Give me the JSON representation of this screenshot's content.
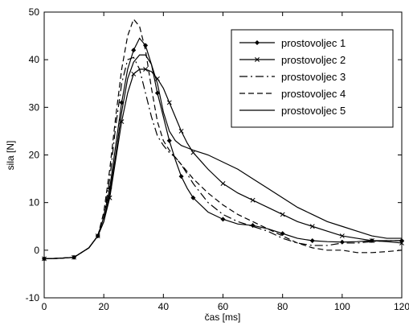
{
  "chart_data": {
    "type": "line",
    "title": "",
    "xlabel": "čas [ms]",
    "ylabel": "sila [N]",
    "xlim": [
      0,
      120
    ],
    "ylim": [
      -10,
      50
    ],
    "xticks": [
      0,
      20,
      40,
      60,
      80,
      100,
      120
    ],
    "yticks": [
      -10,
      0,
      10,
      20,
      30,
      40,
      50
    ],
    "grid": false,
    "legend_position": "top-right",
    "series": [
      {
        "name": "prostovoljec 1",
        "style": "solid-diamond",
        "x": [
          0,
          5,
          10,
          15,
          18,
          20,
          22,
          24,
          26,
          28,
          30,
          32,
          34,
          36,
          38,
          40,
          42,
          44,
          46,
          48,
          50,
          55,
          60,
          65,
          70,
          75,
          80,
          85,
          90,
          95,
          100,
          105,
          110,
          115,
          120
        ],
        "y": [
          -1.8,
          -1.7,
          -1.5,
          0.5,
          3,
          7,
          13,
          22,
          31,
          38,
          42,
          44.5,
          43,
          39,
          33,
          28,
          23,
          19,
          15.5,
          13,
          11,
          8,
          6.5,
          5.5,
          5.2,
          4.5,
          3.5,
          2.5,
          2,
          1.8,
          1.7,
          1.8,
          2,
          2,
          2
        ]
      },
      {
        "name": "prostovoljec 2",
        "style": "solid-x",
        "x": [
          0,
          5,
          10,
          15,
          18,
          20,
          22,
          24,
          26,
          28,
          30,
          32,
          34,
          36,
          38,
          40,
          42,
          44,
          46,
          48,
          50,
          55,
          60,
          65,
          70,
          75,
          80,
          85,
          90,
          95,
          100,
          105,
          110,
          115,
          120
        ],
        "y": [
          -1.8,
          -1.7,
          -1.5,
          0.5,
          3,
          6,
          11,
          19,
          27,
          33,
          37,
          38,
          38,
          37.5,
          36,
          34,
          31,
          28,
          25,
          22.5,
          20.5,
          17,
          14,
          12,
          10.5,
          9,
          7.5,
          6,
          5,
          4,
          3,
          2.5,
          2,
          1.8,
          1.5
        ]
      },
      {
        "name": "prostovoljec 3",
        "style": "dash-dot",
        "x": [
          0,
          5,
          10,
          15,
          18,
          20,
          22,
          24,
          26,
          28,
          30,
          32,
          34,
          36,
          38,
          40,
          42,
          44,
          46,
          48,
          50,
          55,
          60,
          65,
          70,
          75,
          80,
          85,
          90,
          95,
          100,
          105,
          110,
          115,
          120
        ],
        "y": [
          -1.8,
          -1.7,
          -1.5,
          0.5,
          3,
          7,
          15,
          26,
          35,
          40,
          40.5,
          38,
          33,
          28,
          24,
          22,
          20.5,
          19.5,
          18,
          16,
          14,
          10,
          7.5,
          6,
          5,
          4,
          2.5,
          1.5,
          1,
          1,
          1.5,
          1.5,
          1.8,
          2,
          2
        ]
      },
      {
        "name": "prostovoljec 4",
        "style": "dashed",
        "x": [
          0,
          5,
          10,
          15,
          18,
          20,
          22,
          24,
          26,
          28,
          30,
          32,
          34,
          36,
          38,
          40,
          42,
          44,
          46,
          48,
          50,
          55,
          60,
          65,
          70,
          75,
          80,
          85,
          90,
          95,
          100,
          105,
          110,
          115,
          120
        ],
        "y": [
          -1.8,
          -1.7,
          -1.5,
          0.5,
          3,
          8,
          17,
          28,
          38,
          45,
          48.5,
          47,
          42,
          34,
          27,
          23,
          21,
          19.5,
          18,
          16.5,
          15,
          12,
          9.5,
          7.5,
          6,
          4.5,
          3,
          1.5,
          0.5,
          0,
          0,
          -0.5,
          -0.5,
          -0.3,
          0
        ]
      },
      {
        "name": "prostovoljec 5",
        "style": "solid",
        "x": [
          0,
          5,
          10,
          15,
          18,
          20,
          22,
          24,
          26,
          28,
          30,
          32,
          34,
          36,
          38,
          40,
          42,
          44,
          46,
          48,
          50,
          55,
          60,
          65,
          70,
          75,
          80,
          85,
          90,
          95,
          100,
          105,
          110,
          115,
          120
        ],
        "y": [
          -1.8,
          -1.7,
          -1.5,
          0.5,
          3,
          6,
          12,
          20,
          29,
          36,
          39.5,
          41,
          41,
          39,
          35,
          29,
          25,
          23,
          22,
          21.5,
          21,
          20,
          18.5,
          17,
          15,
          13,
          11,
          9,
          7.5,
          6,
          5,
          4,
          3,
          2.5,
          2.5
        ]
      }
    ]
  }
}
